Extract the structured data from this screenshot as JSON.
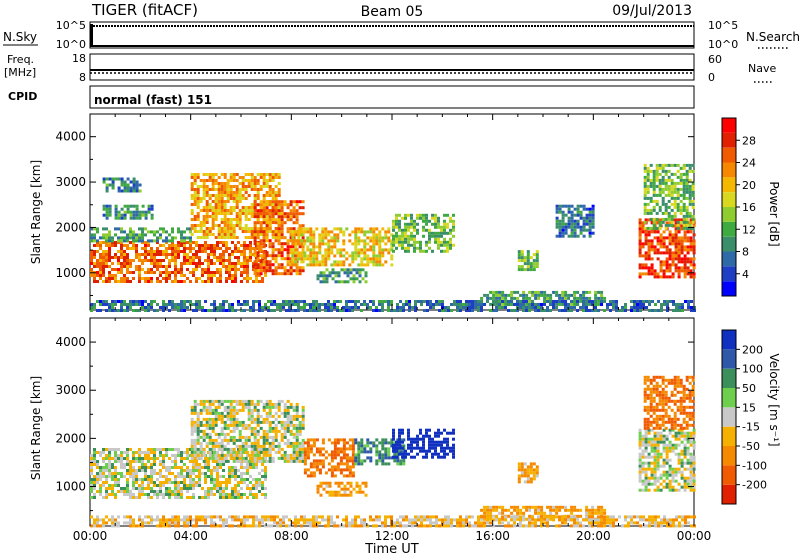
{
  "header": {
    "title": "TIGER (fitACF)",
    "beam": "Beam 05",
    "date": "09/Jul/2013"
  },
  "top_panels": {
    "nsky_label": "N.Sky",
    "nsky_ticks": [
      "10^5",
      "10^0"
    ],
    "nsearch_label": "N.Search",
    "nsearch_ticks": [
      "10^5",
      "10^0"
    ],
    "freq_label": "Freq.",
    "freq_unit": "[MHz]",
    "freq_ticks": [
      "18",
      "8"
    ],
    "nave_label": "Nave",
    "nave_ticks": [
      "60",
      "0"
    ],
    "cpid_label": "CPID",
    "cpid_text": "normal (fast) 151"
  },
  "chart_data": [
    {
      "type": "heatmap",
      "name": "power-panel",
      "ylabel": "Slant Range [km]",
      "ylim": [
        180,
        4500
      ],
      "yticks": [
        1000,
        2000,
        3000,
        4000
      ],
      "xlim": [
        "00:00",
        "24:00"
      ],
      "colorbar": {
        "label": "Power [dB]",
        "ticks": [
          "4",
          "8",
          "12",
          "16",
          "20",
          "24",
          "28"
        ],
        "colors": [
          "#0000ff",
          "#1e3fc4",
          "#2f6aa8",
          "#3a8f6a",
          "#3faa3f",
          "#8fcc2f",
          "#d8d820",
          "#f5b800",
          "#f58800",
          "#f05a00",
          "#e02000",
          "#ff0000"
        ]
      },
      "regions": [
        {
          "t0": 0.0,
          "t1": 7.0,
          "r0": 800,
          "r1": 1700,
          "v": 24
        },
        {
          "t0": 0.0,
          "t1": 4.0,
          "r0": 1700,
          "r1": 2000,
          "v": 10
        },
        {
          "t0": 0.5,
          "t1": 2.5,
          "r0": 2200,
          "r1": 2500,
          "v": 8
        },
        {
          "t0": 0.5,
          "t1": 2.0,
          "r0": 2800,
          "r1": 3100,
          "v": 8
        },
        {
          "t0": 4.0,
          "t1": 7.5,
          "r0": 1800,
          "r1": 3200,
          "v": 20
        },
        {
          "t0": 6.5,
          "t1": 8.5,
          "r0": 1000,
          "r1": 2600,
          "v": 24
        },
        {
          "t0": 8.0,
          "t1": 12.0,
          "r0": 1200,
          "r1": 2000,
          "v": 18
        },
        {
          "t0": 12.0,
          "t1": 14.5,
          "r0": 1500,
          "r1": 2300,
          "v": 12
        },
        {
          "t0": 9.0,
          "t1": 11.0,
          "r0": 800,
          "r1": 1100,
          "v": 10
        },
        {
          "t0": 15.5,
          "t1": 20.5,
          "r0": 300,
          "r1": 600,
          "v": 10
        },
        {
          "t0": 17.0,
          "t1": 17.8,
          "r0": 1100,
          "r1": 1500,
          "v": 12
        },
        {
          "t0": 18.5,
          "t1": 20.0,
          "r0": 1800,
          "r1": 2500,
          "v": 6
        },
        {
          "t0": 21.8,
          "t1": 24.0,
          "r0": 900,
          "r1": 2200,
          "v": 26
        },
        {
          "t0": 22.0,
          "t1": 24.0,
          "r0": 2000,
          "r1": 3400,
          "v": 12
        },
        {
          "t0": 0.0,
          "t1": 24.0,
          "r0": 180,
          "r1": 400,
          "v": 6
        }
      ]
    },
    {
      "type": "heatmap",
      "name": "velocity-panel",
      "ylabel": "Slant Range [km]",
      "ylim": [
        180,
        4500
      ],
      "yticks": [
        1000,
        2000,
        3000,
        4000
      ],
      "xlim": [
        "00:00",
        "24:00"
      ],
      "xticks": [
        "00:00",
        "04:00",
        "08:00",
        "12:00",
        "16:00",
        "20:00",
        "00:00"
      ],
      "xlabel": "Time UT",
      "colorbar": {
        "label": "Velocity [m s⁻¹]",
        "ticks": [
          "200",
          "100",
          "50",
          "15",
          "-15",
          "-50",
          "-100",
          "-200"
        ],
        "colors": [
          "#1030c0",
          "#2f58a8",
          "#3b8f5a",
          "#6ecf4f",
          "#c8c8c8",
          "#f5b000",
          "#f58a00",
          "#f05a00",
          "#e02000"
        ]
      },
      "regions": [
        {
          "t0": 0.0,
          "t1": 7.0,
          "r0": 800,
          "r1": 1800,
          "v": 0
        },
        {
          "t0": 4.0,
          "t1": 8.5,
          "r0": 1500,
          "r1": 2800,
          "v": 0
        },
        {
          "t0": 8.5,
          "t1": 10.5,
          "r0": 1200,
          "r1": 2000,
          "v": -100
        },
        {
          "t0": 10.5,
          "t1": 12.5,
          "r0": 1500,
          "r1": 2000,
          "v": 60
        },
        {
          "t0": 12.0,
          "t1": 14.5,
          "r0": 1600,
          "r1": 2200,
          "v": 200
        },
        {
          "t0": 9.0,
          "t1": 11.0,
          "r0": 800,
          "r1": 1100,
          "v": -50
        },
        {
          "t0": 15.5,
          "t1": 20.5,
          "r0": 300,
          "r1": 600,
          "v": -50
        },
        {
          "t0": 17.0,
          "t1": 17.8,
          "r0": 1100,
          "r1": 1500,
          "v": -50
        },
        {
          "t0": 21.8,
          "t1": 24.0,
          "r0": 900,
          "r1": 2200,
          "v": 0
        },
        {
          "t0": 22.0,
          "t1": 24.0,
          "r0": 2200,
          "r1": 3300,
          "v": -100
        },
        {
          "t0": 0.0,
          "t1": 24.0,
          "r0": 180,
          "r1": 400,
          "v": -30
        }
      ]
    }
  ]
}
